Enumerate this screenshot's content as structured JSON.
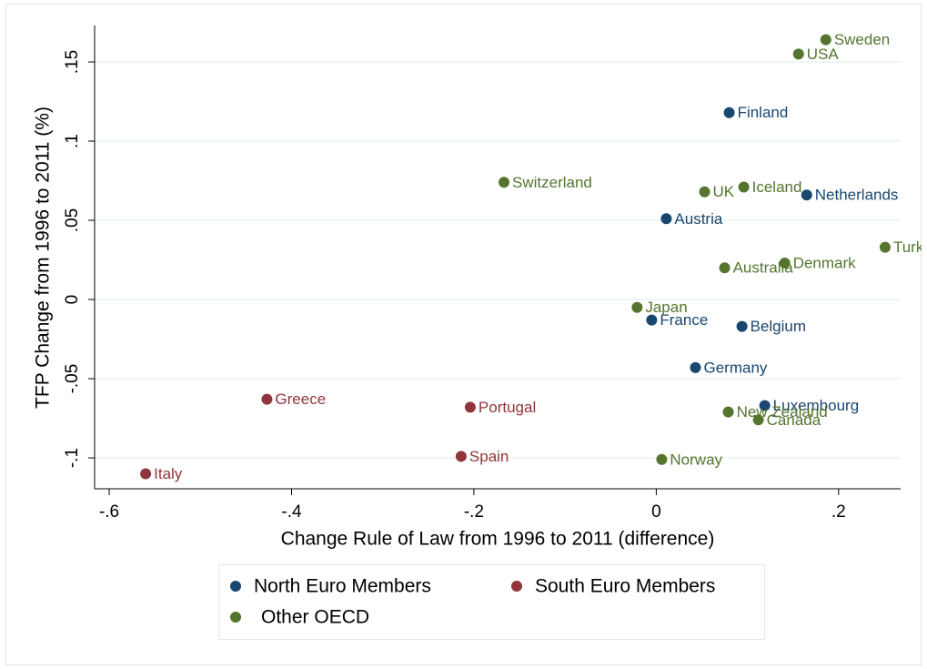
{
  "chart_data": {
    "type": "scatter",
    "xlabel": "Change Rule of Law from 1996 to 2011 (difference)",
    "ylabel": "TFP Change from 1996 to 2011 (%)",
    "xlim": [
      -0.616,
      0.268
    ],
    "ylim": [
      -0.1195,
      0.173
    ],
    "xticks": [
      {
        "value": -0.6,
        "label": "-.6"
      },
      {
        "value": -0.4,
        "label": "-.4"
      },
      {
        "value": -0.2,
        "label": "-.2"
      },
      0,
      {
        "value": 0.2,
        "label": ".2"
      }
    ],
    "yticks": [
      {
        "value": -0.1,
        "label": "-.1"
      },
      {
        "value": -0.05,
        "label": "-.05"
      },
      0,
      {
        "value": 0.05,
        "label": ".05"
      },
      {
        "value": 0.1,
        "label": ".1"
      },
      {
        "value": 0.15,
        "label": ".15"
      }
    ],
    "grid": true,
    "legend": "bottom",
    "series": [
      {
        "name": "North Euro Members",
        "color": "#1a476f",
        "labels": [
          "Finland",
          "Netherlands",
          "Austria",
          "France",
          "Belgium",
          "Germany",
          "Luxembourg"
        ],
        "x": [
          0.08,
          0.165,
          0.011,
          -0.005,
          0.094,
          0.043,
          0.119
        ],
        "values": [
          0.118,
          0.066,
          0.051,
          -0.013,
          -0.017,
          -0.043,
          -0.067
        ]
      },
      {
        "name": "South Euro Members",
        "color": "#90353b",
        "labels": [
          "Greece",
          "Portugal",
          "Spain",
          "Italy"
        ],
        "x": [
          -0.427,
          -0.204,
          -0.214,
          -0.56
        ],
        "values": [
          -0.063,
          -0.068,
          -0.099,
          -0.11
        ]
      },
      {
        "name": "Other OECD",
        "color": "#55752f",
        "labels": [
          "Sweden",
          "USA",
          "Switzerland",
          "UK",
          "Iceland",
          "Turkey",
          "Denmark",
          "Australia",
          "Japan",
          "New Zealand",
          "Canada",
          "Norway"
        ],
        "x": [
          0.186,
          0.156,
          -0.167,
          0.053,
          0.096,
          0.251,
          0.141,
          0.075,
          -0.021,
          0.079,
          0.112,
          0.006
        ],
        "values": [
          0.164,
          0.155,
          0.074,
          0.068,
          0.071,
          0.033,
          0.023,
          0.02,
          -0.005,
          -0.071,
          -0.076,
          -0.101
        ]
      }
    ]
  }
}
